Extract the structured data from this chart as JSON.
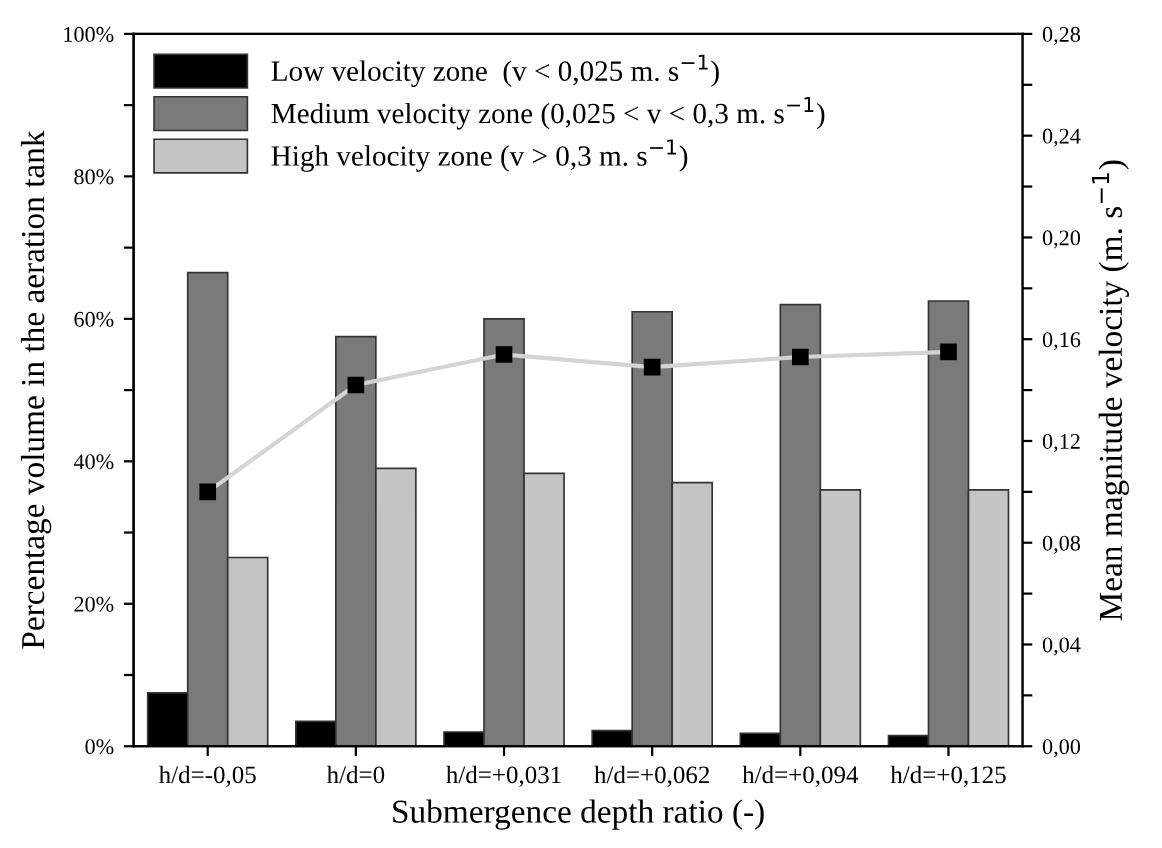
{
  "chart_data": {
    "type": "bar",
    "xlabel": "Submergence depth ratio (-)",
    "ylabel": "Percentage volume in the aeration tank",
    "y2label": "Mean magnitude velocity (m. s$^{−1}$)",
    "categories": [
      "h/d=-0,05",
      "h/d=0",
      "h/d=+0,031",
      "h/d=+0,062",
      "h/d=+0,094",
      "h/d=+0,125"
    ],
    "series": [
      {
        "name": "Low velocity zone  (v < 0,025 m. s$^{−1}$)",
        "color": "#000000",
        "values": [
          7.5,
          3.5,
          2,
          2.2,
          1.8,
          1.5
        ]
      },
      {
        "name": "Medium velocity zone (0,025 < v < 0,3 m. s$^{−1}$)",
        "color": "#7a7a7a",
        "values": [
          66.5,
          57.5,
          60,
          61,
          62,
          62.5
        ]
      },
      {
        "name": "High velocity zone (v > 0,3 m. s$^{−1}$)",
        "color": "#c4c4c4",
        "values": [
          26.5,
          39,
          38.3,
          37,
          36,
          36
        ]
      },
      {
        "type": "line",
        "axis": "y2",
        "color": "#d4d4d4",
        "marker": "square",
        "values": [
          0.1,
          0.142,
          0.154,
          0.149,
          0.153,
          0.155
        ]
      }
    ],
    "ylim": [
      0,
      100
    ],
    "yticks": [
      {
        "value": 0,
        "label": "0%"
      },
      {
        "value": 10,
        "label": null
      },
      {
        "value": 20,
        "label": "20%"
      },
      {
        "value": 30,
        "label": null
      },
      {
        "value": 40,
        "label": "40%"
      },
      {
        "value": 50,
        "label": null
      },
      {
        "value": 60,
        "label": "60%"
      },
      {
        "value": 70,
        "label": null
      },
      {
        "value": 80,
        "label": "80%"
      },
      {
        "value": 90,
        "label": null
      },
      {
        "value": 100,
        "label": "100%"
      }
    ],
    "y2lim": [
      0,
      0.28
    ],
    "y2ticks": [
      {
        "value": 0,
        "label": "0,00"
      },
      {
        "value": 0.02,
        "label": null
      },
      {
        "value": 0.04,
        "label": "0,04"
      },
      {
        "value": 0.06,
        "label": null
      },
      {
        "value": 0.08,
        "label": "0,08"
      },
      {
        "value": 0.1,
        "label": null
      },
      {
        "value": 0.12,
        "label": "0,12"
      },
      {
        "value": 0.14,
        "label": null
      },
      {
        "value": 0.16,
        "label": "0,16"
      },
      {
        "value": 0.18,
        "label": null
      },
      {
        "value": 0.2,
        "label": "0,20"
      },
      {
        "value": 0.22,
        "label": null
      },
      {
        "value": 0.24,
        "label": "0,24"
      },
      {
        "value": 0.26,
        "label": null
      },
      {
        "value": 0.28,
        "label": "0,28"
      }
    ],
    "legend": "top left",
    "grid": false
  }
}
